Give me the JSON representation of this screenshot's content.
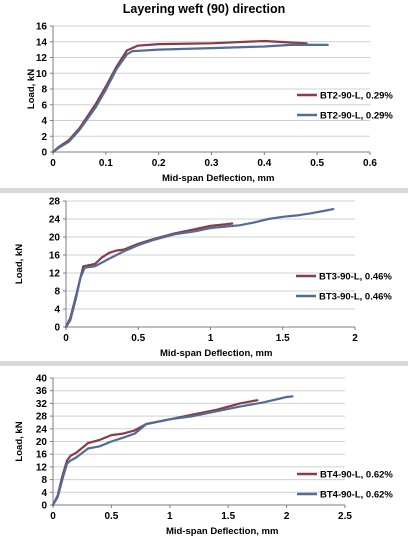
{
  "page_title": "Layering weft (90) direction",
  "colors": {
    "series_red": "#8b3a46",
    "series_blue": "#4f6d96",
    "grid": "#d0d0d0",
    "axis": "#7f7f7f"
  },
  "chart_data": [
    {
      "type": "line",
      "title": "",
      "xlabel": "Mid-span Deflection, mm",
      "ylabel": "Load, kN",
      "xlim": [
        0,
        0.6
      ],
      "ylim": [
        0,
        16
      ],
      "x_ticks": [
        0,
        0.1,
        0.2,
        0.3,
        0.4,
        0.5,
        0.6
      ],
      "y_ticks": [
        0,
        2,
        4,
        6,
        8,
        10,
        12,
        14,
        16
      ],
      "x_tick_labels": [
        "0",
        "0.1",
        "0.2",
        "0.3",
        "0.4",
        "0.5",
        "0.6"
      ],
      "y_tick_labels": [
        "0",
        "2",
        "4",
        "6",
        "8",
        "10",
        "12",
        "14",
        "16"
      ],
      "grid": "horizontal",
      "legend_position": "right",
      "series": [
        {
          "name": "BT2-90-L, 0.29%",
          "color": "#8b3a46",
          "x": [
            0,
            0.01,
            0.03,
            0.05,
            0.08,
            0.1,
            0.12,
            0.14,
            0.16,
            0.2,
            0.3,
            0.4,
            0.45,
            0.48
          ],
          "y": [
            0,
            0.6,
            1.5,
            3.0,
            6.0,
            8.3,
            10.8,
            12.9,
            13.5,
            13.7,
            13.8,
            14.1,
            13.9,
            13.8
          ]
        },
        {
          "name": "BT2-90-L, 0.29%",
          "color": "#4f6d96",
          "x": [
            0,
            0.01,
            0.03,
            0.05,
            0.08,
            0.1,
            0.12,
            0.14,
            0.15,
            0.2,
            0.3,
            0.4,
            0.45,
            0.5,
            0.52
          ],
          "y": [
            0,
            0.5,
            1.3,
            2.8,
            5.6,
            7.9,
            10.5,
            12.4,
            12.8,
            13.0,
            13.2,
            13.4,
            13.6,
            13.6,
            13.6
          ]
        }
      ]
    },
    {
      "type": "line",
      "title": "",
      "xlabel": "Mid-span Deflection, mm",
      "ylabel": "Load, kN",
      "xlim": [
        0,
        2
      ],
      "ylim": [
        0,
        28
      ],
      "x_ticks": [
        0,
        0.5,
        1,
        1.5,
        2
      ],
      "y_ticks": [
        0,
        4,
        8,
        12,
        16,
        20,
        24,
        28
      ],
      "x_tick_labels": [
        "0",
        "0.5",
        "1",
        "1.5",
        "2"
      ],
      "y_tick_labels": [
        "0",
        "4",
        "8",
        "12",
        "16",
        "20",
        "24",
        "28"
      ],
      "grid": "horizontal",
      "legend_position": "right",
      "series": [
        {
          "name": "BT3-90-L, 0.46%",
          "color": "#8b3a46",
          "x": [
            0,
            0.03,
            0.07,
            0.1,
            0.12,
            0.2,
            0.25,
            0.3,
            0.35,
            0.4,
            0.5,
            0.6,
            0.75,
            0.9,
            1.0,
            1.1,
            1.15
          ],
          "y": [
            0,
            2,
            7,
            11,
            13.5,
            14.0,
            15.5,
            16.5,
            17.0,
            17.2,
            18.5,
            19.5,
            20.8,
            21.8,
            22.5,
            22.8,
            23.0
          ]
        },
        {
          "name": "BT3-90-L, 0.46%",
          "color": "#4f6d96",
          "x": [
            0,
            0.03,
            0.07,
            0.1,
            0.13,
            0.2,
            0.3,
            0.4,
            0.5,
            0.6,
            0.75,
            0.9,
            1.0,
            1.1,
            1.2,
            1.3,
            1.4,
            1.5,
            1.6,
            1.7,
            1.8,
            1.85
          ],
          "y": [
            0,
            1.5,
            6.5,
            11,
            13.2,
            13.5,
            15.2,
            16.8,
            18.2,
            19.3,
            20.6,
            21.3,
            22.0,
            22.3,
            22.6,
            23.2,
            24.0,
            24.5,
            24.8,
            25.3,
            25.9,
            26.2
          ]
        }
      ]
    },
    {
      "type": "line",
      "title": "",
      "xlabel": "Mid-span Deflection, mm",
      "ylabel": "Load, kN",
      "xlim": [
        0,
        2.5
      ],
      "ylim": [
        0,
        40
      ],
      "x_ticks": [
        0,
        0.5,
        1,
        1.5,
        2,
        2.5
      ],
      "y_ticks": [
        0,
        4,
        8,
        12,
        16,
        20,
        24,
        28,
        32,
        36,
        40
      ],
      "x_tick_labels": [
        "0",
        "0.5",
        "1",
        "1.5",
        "2",
        "2.5"
      ],
      "y_tick_labels": [
        "0",
        "4",
        "8",
        "12",
        "16",
        "20",
        "24",
        "28",
        "32",
        "36",
        "40"
      ],
      "grid": "horizontal",
      "legend_position": "right",
      "series": [
        {
          "name": "BT4-90-L, 0.62%",
          "color": "#8b3a46",
          "x": [
            0,
            0.04,
            0.08,
            0.12,
            0.15,
            0.2,
            0.3,
            0.4,
            0.5,
            0.6,
            0.7,
            0.8,
            1.0,
            1.2,
            1.4,
            1.6,
            1.75
          ],
          "y": [
            0,
            3,
            9,
            14,
            15.5,
            16.5,
            19.5,
            20.5,
            22,
            22.5,
            23.5,
            25.5,
            27,
            28.5,
            30,
            32,
            33
          ]
        },
        {
          "name": "BT4-90-L, 0.62%",
          "color": "#4f6d96",
          "x": [
            0,
            0.04,
            0.08,
            0.12,
            0.15,
            0.2,
            0.3,
            0.4,
            0.5,
            0.6,
            0.7,
            0.8,
            1.0,
            1.2,
            1.4,
            1.6,
            1.8,
            2.0,
            2.05
          ],
          "y": [
            0,
            2.5,
            8,
            13,
            14,
            15,
            17.8,
            18.5,
            20,
            21.2,
            22.5,
            25.5,
            27,
            28,
            29.5,
            31,
            32.3,
            34,
            34.2
          ]
        }
      ]
    }
  ]
}
